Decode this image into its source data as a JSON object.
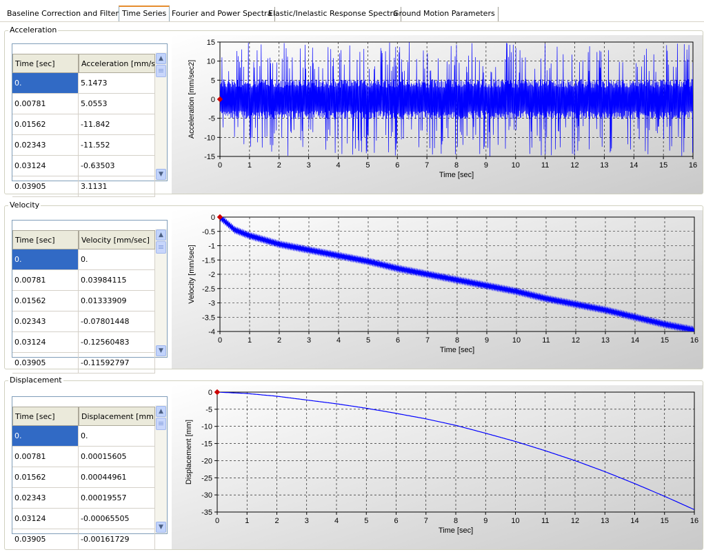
{
  "tabs": [
    {
      "label": "Baseline Correction and Filtering",
      "active": false
    },
    {
      "label": "Time Series",
      "active": true
    },
    {
      "label": "Fourier and Power Spectra",
      "active": false
    },
    {
      "label": "Elastic/Inelastic Response Spectra",
      "active": false
    },
    {
      "label": "Ground Motion Parameters",
      "active": false
    }
  ],
  "panels": [
    {
      "group_title": "Acceleration",
      "columns": [
        "Time [sec]",
        "Acceleration [mm/sec"
      ],
      "rows": [
        [
          "0.",
          "5.1473"
        ],
        [
          "0.00781",
          "5.0553"
        ],
        [
          "0.01562",
          "-11.842"
        ],
        [
          "0.02343",
          "-11.552"
        ],
        [
          "0.03124",
          "-0.63503"
        ],
        [
          "0.03905",
          "3.1131"
        ]
      ],
      "chart": {
        "type": "line",
        "ylabel": "Acceleration [mm/sec2]",
        "xlabel": "Time [sec]",
        "xlim": [
          0,
          16
        ],
        "ylim": [
          -15,
          15
        ],
        "xticks": [
          "0",
          "1",
          "2",
          "3",
          "4",
          "5",
          "6",
          "7",
          "8",
          "9",
          "10",
          "11",
          "12",
          "13",
          "14",
          "15",
          "16"
        ],
        "yticks": [
          "15",
          "10",
          "5",
          "0",
          "-5",
          "-10",
          "-15"
        ]
      }
    },
    {
      "group_title": "Velocity",
      "columns": [
        "Time [sec]",
        "Velocity [mm/sec]"
      ],
      "rows": [
        [
          "0.",
          "0."
        ],
        [
          "0.00781",
          "0.03984115"
        ],
        [
          "0.01562",
          "0.01333909"
        ],
        [
          "0.02343",
          "-0.07801448"
        ],
        [
          "0.03124",
          "-0.12560483"
        ],
        [
          "0.03905",
          "-0.11592797"
        ]
      ],
      "chart": {
        "type": "line",
        "ylabel": "Velocity [mm/sec]",
        "xlabel": "Time [sec]",
        "xlim": [
          0,
          16
        ],
        "ylim": [
          -4,
          0
        ],
        "xticks": [
          "0",
          "1",
          "2",
          "3",
          "4",
          "5",
          "6",
          "7",
          "8",
          "9",
          "10",
          "11",
          "12",
          "13",
          "14",
          "15",
          "16"
        ],
        "yticks": [
          "0",
          "-0.5",
          "-1",
          "-1.5",
          "-2",
          "-2.5",
          "-3",
          "-3.5",
          "-4"
        ]
      }
    },
    {
      "group_title": "Displacement",
      "columns": [
        "Time [sec]",
        "Displacement [mm]"
      ],
      "rows": [
        [
          "0.",
          "0."
        ],
        [
          "0.00781",
          "0.00015605"
        ],
        [
          "0.01562",
          "0.00044961"
        ],
        [
          "0.02343",
          "0.00019557"
        ],
        [
          "0.03124",
          "-0.00065505"
        ],
        [
          "0.03905",
          "-0.00161729"
        ]
      ],
      "chart": {
        "type": "line",
        "ylabel": "Displacement [mm]",
        "xlabel": "Time [sec]",
        "xlim": [
          0,
          16
        ],
        "ylim": [
          -35,
          0
        ],
        "xticks": [
          "0",
          "1",
          "2",
          "3",
          "4",
          "5",
          "6",
          "7",
          "8",
          "9",
          "10",
          "11",
          "12",
          "13",
          "14",
          "15",
          "16"
        ],
        "yticks": [
          "0",
          "-5",
          "-10",
          "-15",
          "-20",
          "-25",
          "-30",
          "-35"
        ]
      }
    }
  ],
  "chart_data": [
    {
      "type": "line",
      "title": "",
      "xlabel": "Time [sec]",
      "ylabel": "Acceleration [mm/sec2]",
      "xlim": [
        0,
        16
      ],
      "ylim": [
        -15,
        15
      ],
      "grid": true,
      "series_color": "#0000ff",
      "marker_color": "#cc0000",
      "envelope": {
        "dense_band": [
          -5,
          5
        ],
        "peaks": [
          -15,
          15
        ]
      }
    },
    {
      "type": "line",
      "title": "",
      "xlabel": "Time [sec]",
      "ylabel": "Velocity [mm/sec]",
      "xlim": [
        0,
        16
      ],
      "ylim": [
        -4,
        0
      ],
      "grid": true,
      "series_color": "#0000ff",
      "marker_color": "#cc0000",
      "x": [
        0,
        0.5,
        1,
        2,
        3,
        4,
        5,
        6,
        7,
        8,
        9,
        10,
        11,
        12,
        13,
        14,
        15,
        16
      ],
      "y": [
        0,
        -0.45,
        -0.65,
        -0.95,
        -1.15,
        -1.35,
        -1.55,
        -1.8,
        -2.0,
        -2.2,
        -2.4,
        -2.6,
        -2.85,
        -3.05,
        -3.25,
        -3.5,
        -3.75,
        -3.95
      ]
    },
    {
      "type": "line",
      "title": "",
      "xlabel": "Time [sec]",
      "ylabel": "Displacement [mm]",
      "xlim": [
        0,
        16
      ],
      "ylim": [
        -35,
        0
      ],
      "grid": true,
      "series_color": "#0000ff",
      "marker_color": "#cc0000",
      "x": [
        0,
        1,
        2,
        3,
        4,
        5,
        6,
        7,
        8,
        9,
        10,
        11,
        12,
        13,
        14,
        15,
        16
      ],
      "y": [
        0,
        -0.4,
        -1.2,
        -2.3,
        -3.4,
        -4.7,
        -6.2,
        -7.8,
        -9.7,
        -12.0,
        -14.4,
        -17.1,
        -20.0,
        -23.2,
        -26.7,
        -30.4,
        -34.3
      ]
    }
  ]
}
